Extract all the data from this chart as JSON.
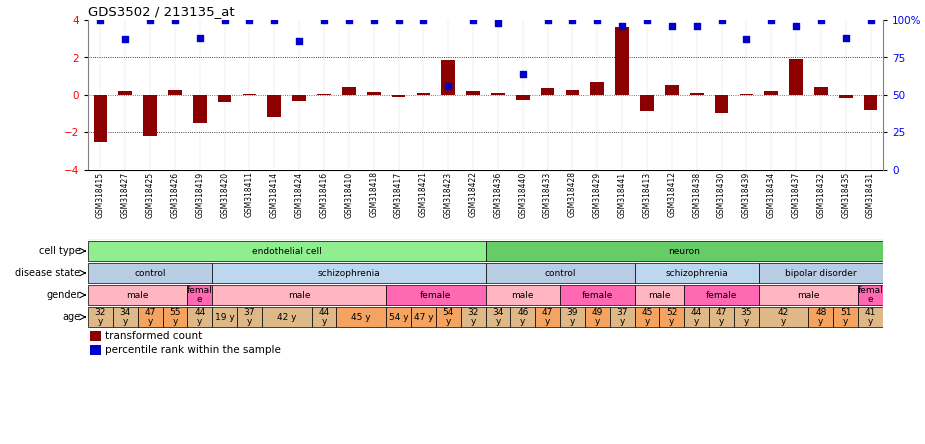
{
  "title": "GDS3502 / 213135_at",
  "samples": [
    "GSM318415",
    "GSM318427",
    "GSM318425",
    "GSM318426",
    "GSM318419",
    "GSM318420",
    "GSM318411",
    "GSM318414",
    "GSM318424",
    "GSM318416",
    "GSM318410",
    "GSM318418",
    "GSM318417",
    "GSM318421",
    "GSM318423",
    "GSM318422",
    "GSM318436",
    "GSM318440",
    "GSM318433",
    "GSM318428",
    "GSM318429",
    "GSM318441",
    "GSM318413",
    "GSM318412",
    "GSM318438",
    "GSM318430",
    "GSM318439",
    "GSM318434",
    "GSM318437",
    "GSM318432",
    "GSM318435",
    "GSM318431"
  ],
  "bar_values": [
    -2.5,
    0.2,
    -2.2,
    0.25,
    -1.5,
    -0.35,
    0.05,
    -1.2,
    -0.3,
    0.05,
    0.4,
    0.15,
    -0.1,
    0.1,
    1.85,
    0.2,
    0.1,
    -0.25,
    0.35,
    0.25,
    0.7,
    3.6,
    -0.85,
    0.55,
    0.1,
    -0.95,
    0.05,
    0.2,
    1.9,
    0.45,
    -0.15,
    -0.8
  ],
  "dot_values_pct": [
    100,
    87,
    100,
    100,
    88,
    100,
    100,
    100,
    86,
    100,
    100,
    100,
    100,
    100,
    56,
    100,
    98,
    64,
    100,
    100,
    100,
    96,
    100,
    96,
    96,
    100,
    87,
    100,
    96,
    100,
    88,
    100
  ],
  "cell_type_spans": [
    {
      "label": "endothelial cell",
      "start": 0,
      "end": 16,
      "color": "#90EE90"
    },
    {
      "label": "neuron",
      "start": 16,
      "end": 32,
      "color": "#66CC66"
    }
  ],
  "disease_state_spans": [
    {
      "label": "control",
      "start": 0,
      "end": 5,
      "color": "#B8CCE4"
    },
    {
      "label": "schizophrenia",
      "start": 5,
      "end": 16,
      "color": "#BDD7EE"
    },
    {
      "label": "control",
      "start": 16,
      "end": 22,
      "color": "#B8CCE4"
    },
    {
      "label": "schizophrenia",
      "start": 22,
      "end": 27,
      "color": "#BDD7EE"
    },
    {
      "label": "bipolar disorder",
      "start": 27,
      "end": 32,
      "color": "#B8CCE4"
    }
  ],
  "gender_spans": [
    {
      "label": "male",
      "start": 0,
      "end": 4,
      "color": "#FFB6C1"
    },
    {
      "label": "femal\ne",
      "start": 4,
      "end": 5,
      "color": "#FF69B4"
    },
    {
      "label": "male",
      "start": 5,
      "end": 12,
      "color": "#FFB6C1"
    },
    {
      "label": "female",
      "start": 12,
      "end": 16,
      "color": "#FF69B4"
    },
    {
      "label": "male",
      "start": 16,
      "end": 19,
      "color": "#FFB6C1"
    },
    {
      "label": "female",
      "start": 19,
      "end": 22,
      "color": "#FF69B4"
    },
    {
      "label": "male",
      "start": 22,
      "end": 24,
      "color": "#FFB6C1"
    },
    {
      "label": "female",
      "start": 24,
      "end": 27,
      "color": "#FF69B4"
    },
    {
      "label": "male",
      "start": 27,
      "end": 31,
      "color": "#FFB6C1"
    },
    {
      "label": "femal\ne",
      "start": 31,
      "end": 32,
      "color": "#FF69B4"
    }
  ],
  "age_data": [
    {
      "label": "32\ny",
      "start": 0,
      "end": 1,
      "color": "#DEB887"
    },
    {
      "label": "34\ny",
      "start": 1,
      "end": 2,
      "color": "#DEB887"
    },
    {
      "label": "47\ny",
      "start": 2,
      "end": 3,
      "color": "#F4A460"
    },
    {
      "label": "55\ny",
      "start": 3,
      "end": 4,
      "color": "#F4A460"
    },
    {
      "label": "44\ny",
      "start": 4,
      "end": 5,
      "color": "#DEB887"
    },
    {
      "label": "19 y",
      "start": 5,
      "end": 6,
      "color": "#DEB887"
    },
    {
      "label": "37\ny",
      "start": 6,
      "end": 7,
      "color": "#DEB887"
    },
    {
      "label": "42 y",
      "start": 7,
      "end": 9,
      "color": "#DEB887"
    },
    {
      "label": "44\ny",
      "start": 9,
      "end": 10,
      "color": "#DEB887"
    },
    {
      "label": "45 y",
      "start": 10,
      "end": 12,
      "color": "#F4A460"
    },
    {
      "label": "54 y",
      "start": 12,
      "end": 13,
      "color": "#F4A460"
    },
    {
      "label": "47 y",
      "start": 13,
      "end": 14,
      "color": "#F4A460"
    },
    {
      "label": "54\ny",
      "start": 14,
      "end": 15,
      "color": "#F4A460"
    },
    {
      "label": "32\ny",
      "start": 15,
      "end": 16,
      "color": "#DEB887"
    },
    {
      "label": "34\ny",
      "start": 16,
      "end": 17,
      "color": "#DEB887"
    },
    {
      "label": "46\ny",
      "start": 17,
      "end": 18,
      "color": "#DEB887"
    },
    {
      "label": "47\ny",
      "start": 18,
      "end": 19,
      "color": "#F4A460"
    },
    {
      "label": "39\ny",
      "start": 19,
      "end": 20,
      "color": "#DEB887"
    },
    {
      "label": "49\ny",
      "start": 20,
      "end": 21,
      "color": "#F4A460"
    },
    {
      "label": "37\ny",
      "start": 21,
      "end": 22,
      "color": "#DEB887"
    },
    {
      "label": "45\ny",
      "start": 22,
      "end": 23,
      "color": "#F4A460"
    },
    {
      "label": "52\ny",
      "start": 23,
      "end": 24,
      "color": "#F4A460"
    },
    {
      "label": "44\ny",
      "start": 24,
      "end": 25,
      "color": "#DEB887"
    },
    {
      "label": "47\ny",
      "start": 25,
      "end": 26,
      "color": "#DEB887"
    },
    {
      "label": "35\ny",
      "start": 26,
      "end": 27,
      "color": "#DEB887"
    },
    {
      "label": "42\ny",
      "start": 27,
      "end": 29,
      "color": "#DEB887"
    },
    {
      "label": "48\ny",
      "start": 29,
      "end": 30,
      "color": "#F4A460"
    },
    {
      "label": "51\ny",
      "start": 30,
      "end": 31,
      "color": "#F4A460"
    },
    {
      "label": "41\ny",
      "start": 31,
      "end": 32,
      "color": "#DEB887"
    }
  ],
  "bar_color": "#8B0000",
  "dot_color": "#0000CD",
  "ylim_left": [
    -4,
    4
  ],
  "ylim_right": [
    0,
    100
  ],
  "yticks_left": [
    -4,
    -2,
    0,
    2,
    4
  ],
  "yticks_right": [
    0,
    25,
    50,
    75,
    100
  ],
  "row_labels": [
    "cell type",
    "disease state",
    "gender",
    "age"
  ],
  "legend_items": [
    {
      "label": "transformed count",
      "color": "#8B0000"
    },
    {
      "label": "percentile rank within the sample",
      "color": "#0000CD"
    }
  ]
}
